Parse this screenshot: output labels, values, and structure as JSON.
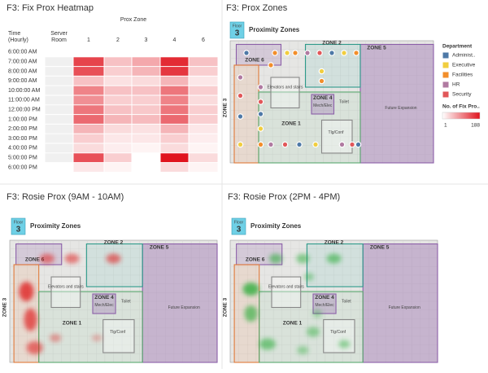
{
  "heatmap": {
    "title": "F3: Fix Prox Heatmap",
    "column_group": "Prox Zone",
    "row_header": "Time (Hourly)",
    "columns": [
      "Server Room",
      "1",
      "2",
      "3",
      "4",
      "6"
    ],
    "rows": [
      "6:00:00 AM",
      "7:00:00 AM",
      "8:00:00 AM",
      "9:00:00 AM",
      "10:00:00 AM",
      "11:00:00 AM",
      "12:00:00 PM",
      "1:00:00 PM",
      "2:00:00 PM",
      "3:00:00 PM",
      "4:00:00 PM",
      "5:00:00 PM",
      "6:00:00 PM"
    ],
    "values": [
      [
        null,
        null,
        null,
        null,
        null,
        null
      ],
      [
        5,
        150,
        50,
        70,
        170,
        50
      ],
      [
        5,
        140,
        40,
        60,
        160,
        40
      ],
      [
        5,
        50,
        25,
        30,
        60,
        20
      ],
      [
        5,
        100,
        50,
        50,
        110,
        40
      ],
      [
        5,
        90,
        40,
        40,
        100,
        30
      ],
      [
        5,
        110,
        50,
        45,
        110,
        40
      ],
      [
        5,
        120,
        60,
        55,
        120,
        40
      ],
      [
        5,
        60,
        30,
        25,
        60,
        20
      ],
      [
        5,
        40,
        20,
        20,
        40,
        15
      ],
      [
        5,
        30,
        15,
        10,
        30,
        10
      ],
      [
        5,
        140,
        40,
        null,
        188,
        30
      ],
      [
        null,
        20,
        10,
        null,
        30,
        10
      ]
    ],
    "scale": {
      "label": "No. of Fix Pro..",
      "min": 1,
      "max": 188,
      "colors": [
        "#ffffff",
        "#e0141e"
      ]
    }
  },
  "floor_plan": {
    "floor_label": "Floor",
    "floor": "3",
    "title": "Proximity Zones",
    "zones": [
      "ZONE 1",
      "ZONE 2",
      "ZONE 3",
      "ZONE 4",
      "ZONE 5",
      "ZONE 6"
    ],
    "rooms": [
      "Elevators and stairs",
      "Mech/Elec",
      "Toilet",
      "Tlg/Conf",
      "Future Expansion"
    ]
  },
  "zones_map": {
    "title": "F3: Prox Zones",
    "legend_title": "Department",
    "departments": [
      {
        "name": "Administ..",
        "color": "#4e79a7"
      },
      {
        "name": "Executive",
        "color": "#f1ce3f"
      },
      {
        "name": "Facilities",
        "color": "#f28e2b"
      },
      {
        "name": "HR",
        "color": "#b07aa1"
      },
      {
        "name": "Security",
        "color": "#e15759"
      }
    ]
  },
  "rosie_morning": {
    "title": "F3: Rosie Prox (9AM - 10AM)"
  },
  "rosie_afternoon": {
    "title": "F3: Rosie Prox (2PM - 4PM)"
  }
}
